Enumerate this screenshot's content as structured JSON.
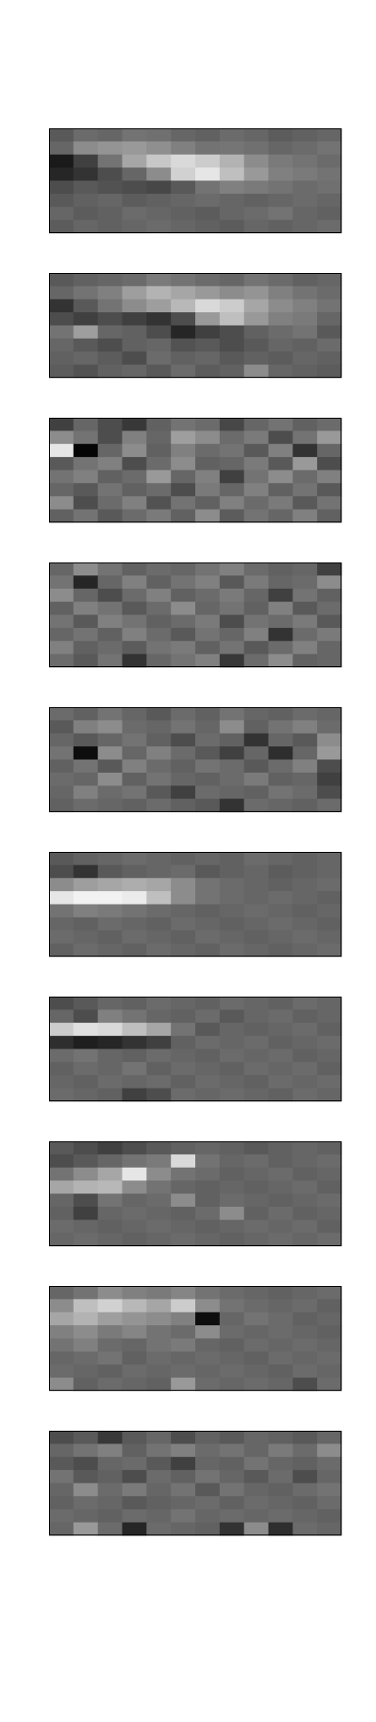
{
  "chart_data": [
    {
      "type": "heatmap",
      "colormap": "gray",
      "rows": 8,
      "cols": 12,
      "values": [
        [
          0.35,
          0.42,
          0.4,
          0.45,
          0.44,
          0.4,
          0.38,
          0.42,
          0.4,
          0.36,
          0.38,
          0.4
        ],
        [
          0.4,
          0.55,
          0.58,
          0.6,
          0.56,
          0.5,
          0.45,
          0.46,
          0.44,
          0.4,
          0.42,
          0.45
        ],
        [
          0.1,
          0.25,
          0.45,
          0.65,
          0.78,
          0.85,
          0.8,
          0.7,
          0.55,
          0.48,
          0.45,
          0.42
        ],
        [
          0.15,
          0.2,
          0.3,
          0.4,
          0.55,
          0.82,
          0.9,
          0.75,
          0.6,
          0.5,
          0.48,
          0.45
        ],
        [
          0.3,
          0.35,
          0.32,
          0.3,
          0.28,
          0.35,
          0.45,
          0.5,
          0.48,
          0.45,
          0.42,
          0.44
        ],
        [
          0.35,
          0.38,
          0.4,
          0.36,
          0.38,
          0.4,
          0.42,
          0.4,
          0.38,
          0.4,
          0.42,
          0.4
        ],
        [
          0.4,
          0.36,
          0.38,
          0.42,
          0.4,
          0.38,
          0.36,
          0.4,
          0.42,
          0.45,
          0.4,
          0.38
        ],
        [
          0.36,
          0.4,
          0.38,
          0.4,
          0.42,
          0.4,
          0.38,
          0.36,
          0.4,
          0.38,
          0.4,
          0.42
        ]
      ]
    },
    {
      "type": "heatmap",
      "colormap": "gray",
      "rows": 8,
      "cols": 12,
      "values": [
        [
          0.35,
          0.38,
          0.4,
          0.42,
          0.48,
          0.45,
          0.42,
          0.4,
          0.45,
          0.42,
          0.38,
          0.4
        ],
        [
          0.4,
          0.45,
          0.5,
          0.62,
          0.7,
          0.65,
          0.6,
          0.55,
          0.58,
          0.5,
          0.45,
          0.42
        ],
        [
          0.2,
          0.35,
          0.45,
          0.55,
          0.62,
          0.72,
          0.85,
          0.8,
          0.65,
          0.55,
          0.5,
          0.45
        ],
        [
          0.3,
          0.25,
          0.3,
          0.25,
          0.2,
          0.3,
          0.6,
          0.75,
          0.6,
          0.5,
          0.48,
          0.4
        ],
        [
          0.45,
          0.62,
          0.4,
          0.38,
          0.3,
          0.15,
          0.25,
          0.3,
          0.38,
          0.42,
          0.45,
          0.35
        ],
        [
          0.4,
          0.35,
          0.3,
          0.38,
          0.4,
          0.32,
          0.35,
          0.3,
          0.35,
          0.4,
          0.38,
          0.42
        ],
        [
          0.38,
          0.4,
          0.36,
          0.3,
          0.42,
          0.38,
          0.4,
          0.35,
          0.38,
          0.36,
          0.4,
          0.38
        ],
        [
          0.36,
          0.32,
          0.38,
          0.4,
          0.35,
          0.42,
          0.36,
          0.38,
          0.55,
          0.4,
          0.38,
          0.36
        ]
      ]
    },
    {
      "type": "heatmap",
      "colormap": "gray",
      "rows": 8,
      "cols": 12,
      "values": [
        [
          0.25,
          0.4,
          0.3,
          0.22,
          0.38,
          0.45,
          0.42,
          0.28,
          0.4,
          0.45,
          0.38,
          0.42
        ],
        [
          0.55,
          0.45,
          0.3,
          0.5,
          0.4,
          0.62,
          0.55,
          0.42,
          0.48,
          0.3,
          0.45,
          0.6
        ],
        [
          0.9,
          0.02,
          0.4,
          0.55,
          0.38,
          0.5,
          0.42,
          0.45,
          0.35,
          0.5,
          0.2,
          0.4
        ],
        [
          0.35,
          0.45,
          0.5,
          0.3,
          0.42,
          0.55,
          0.38,
          0.4,
          0.48,
          0.35,
          0.6,
          0.3
        ],
        [
          0.45,
          0.5,
          0.38,
          0.42,
          0.6,
          0.4,
          0.5,
          0.25,
          0.45,
          0.55,
          0.42,
          0.5
        ],
        [
          0.4,
          0.35,
          0.45,
          0.38,
          0.42,
          0.3,
          0.48,
          0.4,
          0.5,
          0.38,
          0.45,
          0.35
        ],
        [
          0.55,
          0.3,
          0.42,
          0.5,
          0.32,
          0.45,
          0.38,
          0.5,
          0.42,
          0.48,
          0.35,
          0.45
        ],
        [
          0.38,
          0.45,
          0.35,
          0.42,
          0.48,
          0.38,
          0.55,
          0.36,
          0.45,
          0.4,
          0.5,
          0.38
        ]
      ]
    },
    {
      "type": "heatmap",
      "colormap": "gray",
      "rows": 8,
      "cols": 12,
      "values": [
        [
          0.4,
          0.55,
          0.45,
          0.38,
          0.42,
          0.4,
          0.45,
          0.5,
          0.42,
          0.38,
          0.4,
          0.25
        ],
        [
          0.45,
          0.15,
          0.4,
          0.5,
          0.38,
          0.45,
          0.5,
          0.35,
          0.48,
          0.4,
          0.42,
          0.55
        ],
        [
          0.55,
          0.4,
          0.3,
          0.42,
          0.5,
          0.38,
          0.42,
          0.48,
          0.4,
          0.25,
          0.45,
          0.38
        ],
        [
          0.38,
          0.5,
          0.45,
          0.35,
          0.42,
          0.55,
          0.4,
          0.45,
          0.38,
          0.5,
          0.35,
          0.42
        ],
        [
          0.45,
          0.35,
          0.5,
          0.45,
          0.38,
          0.42,
          0.48,
          0.3,
          0.45,
          0.42,
          0.48,
          0.35
        ],
        [
          0.4,
          0.45,
          0.38,
          0.5,
          0.42,
          0.35,
          0.45,
          0.4,
          0.5,
          0.2,
          0.42,
          0.48
        ],
        [
          0.5,
          0.38,
          0.42,
          0.36,
          0.45,
          0.48,
          0.38,
          0.45,
          0.35,
          0.42,
          0.5,
          0.4
        ],
        [
          0.42,
          0.35,
          0.45,
          0.2,
          0.4,
          0.45,
          0.5,
          0.22,
          0.42,
          0.55,
          0.38,
          0.4
        ]
      ]
    },
    {
      "type": "heatmap",
      "colormap": "gray",
      "rows": 8,
      "cols": 12,
      "values": [
        [
          0.42,
          0.38,
          0.45,
          0.4,
          0.35,
          0.42,
          0.38,
          0.45,
          0.4,
          0.38,
          0.42,
          0.4
        ],
        [
          0.35,
          0.5,
          0.55,
          0.42,
          0.4,
          0.45,
          0.4,
          0.55,
          0.38,
          0.45,
          0.5,
          0.42
        ],
        [
          0.4,
          0.35,
          0.4,
          0.45,
          0.38,
          0.3,
          0.42,
          0.38,
          0.2,
          0.4,
          0.35,
          0.55
        ],
        [
          0.45,
          0.05,
          0.55,
          0.4,
          0.5,
          0.42,
          0.35,
          0.25,
          0.4,
          0.18,
          0.4,
          0.6
        ],
        [
          0.38,
          0.45,
          0.35,
          0.5,
          0.42,
          0.38,
          0.45,
          0.42,
          0.35,
          0.42,
          0.5,
          0.3
        ],
        [
          0.42,
          0.4,
          0.55,
          0.38,
          0.45,
          0.4,
          0.38,
          0.42,
          0.48,
          0.38,
          0.4,
          0.25
        ],
        [
          0.4,
          0.5,
          0.42,
          0.45,
          0.35,
          0.25,
          0.42,
          0.4,
          0.38,
          0.45,
          0.42,
          0.3
        ],
        [
          0.38,
          0.42,
          0.4,
          0.38,
          0.42,
          0.38,
          0.35,
          0.2,
          0.42,
          0.4,
          0.38,
          0.42
        ]
      ]
    },
    {
      "type": "heatmap",
      "colormap": "gray",
      "rows": 8,
      "cols": 12,
      "values": [
        [
          0.35,
          0.38,
          0.4,
          0.42,
          0.4,
          0.38,
          0.4,
          0.38,
          0.42,
          0.4,
          0.38,
          0.4
        ],
        [
          0.3,
          0.2,
          0.35,
          0.38,
          0.4,
          0.42,
          0.35,
          0.38,
          0.4,
          0.36,
          0.38,
          0.4
        ],
        [
          0.55,
          0.62,
          0.65,
          0.68,
          0.65,
          0.55,
          0.45,
          0.42,
          0.4,
          0.38,
          0.4,
          0.42
        ],
        [
          0.9,
          0.95,
          0.95,
          0.92,
          0.75,
          0.55,
          0.45,
          0.42,
          0.4,
          0.42,
          0.4,
          0.38
        ],
        [
          0.45,
          0.5,
          0.48,
          0.45,
          0.42,
          0.4,
          0.38,
          0.4,
          0.42,
          0.4,
          0.38,
          0.4
        ],
        [
          0.4,
          0.38,
          0.42,
          0.4,
          0.38,
          0.42,
          0.4,
          0.38,
          0.4,
          0.42,
          0.4,
          0.38
        ],
        [
          0.42,
          0.4,
          0.38,
          0.42,
          0.4,
          0.38,
          0.42,
          0.4,
          0.38,
          0.4,
          0.42,
          0.4
        ],
        [
          0.38,
          0.42,
          0.4,
          0.38,
          0.42,
          0.4,
          0.38,
          0.42,
          0.4,
          0.38,
          0.4,
          0.42
        ]
      ]
    },
    {
      "type": "heatmap",
      "colormap": "gray",
      "rows": 8,
      "cols": 12,
      "values": [
        [
          0.3,
          0.35,
          0.4,
          0.38,
          0.42,
          0.4,
          0.38,
          0.42,
          0.4,
          0.38,
          0.42,
          0.4
        ],
        [
          0.4,
          0.3,
          0.5,
          0.45,
          0.4,
          0.38,
          0.42,
          0.35,
          0.4,
          0.42,
          0.38,
          0.4
        ],
        [
          0.8,
          0.88,
          0.85,
          0.75,
          0.65,
          0.45,
          0.35,
          0.4,
          0.38,
          0.4,
          0.42,
          0.38
        ],
        [
          0.18,
          0.12,
          0.15,
          0.2,
          0.25,
          0.38,
          0.42,
          0.4,
          0.42,
          0.38,
          0.4,
          0.42
        ],
        [
          0.42,
          0.45,
          0.4,
          0.38,
          0.42,
          0.4,
          0.38,
          0.42,
          0.4,
          0.42,
          0.38,
          0.4
        ],
        [
          0.38,
          0.42,
          0.4,
          0.45,
          0.38,
          0.42,
          0.4,
          0.38,
          0.42,
          0.4,
          0.42,
          0.38
        ],
        [
          0.4,
          0.38,
          0.42,
          0.4,
          0.42,
          0.38,
          0.42,
          0.4,
          0.38,
          0.42,
          0.4,
          0.42
        ],
        [
          0.42,
          0.4,
          0.38,
          0.25,
          0.3,
          0.42,
          0.4,
          0.42,
          0.4,
          0.38,
          0.42,
          0.4
        ]
      ]
    },
    {
      "type": "heatmap",
      "colormap": "gray",
      "rows": 8,
      "cols": 12,
      "values": [
        [
          0.35,
          0.3,
          0.25,
          0.3,
          0.35,
          0.38,
          0.4,
          0.38,
          0.35,
          0.38,
          0.4,
          0.38
        ],
        [
          0.3,
          0.35,
          0.4,
          0.45,
          0.48,
          0.85,
          0.45,
          0.4,
          0.42,
          0.38,
          0.4,
          0.42
        ],
        [
          0.45,
          0.55,
          0.65,
          0.9,
          0.55,
          0.45,
          0.42,
          0.38,
          0.4,
          0.42,
          0.38,
          0.4
        ],
        [
          0.65,
          0.7,
          0.72,
          0.55,
          0.45,
          0.4,
          0.38,
          0.4,
          0.38,
          0.4,
          0.42,
          0.38
        ],
        [
          0.4,
          0.3,
          0.45,
          0.4,
          0.42,
          0.55,
          0.38,
          0.42,
          0.4,
          0.38,
          0.4,
          0.42
        ],
        [
          0.38,
          0.25,
          0.4,
          0.42,
          0.4,
          0.38,
          0.42,
          0.55,
          0.38,
          0.42,
          0.38,
          0.4
        ],
        [
          0.42,
          0.4,
          0.38,
          0.4,
          0.42,
          0.4,
          0.38,
          0.4,
          0.42,
          0.4,
          0.42,
          0.38
        ],
        [
          0.4,
          0.42,
          0.4,
          0.38,
          0.4,
          0.42,
          0.4,
          0.38,
          0.4,
          0.42,
          0.4,
          0.42
        ]
      ]
    },
    {
      "type": "heatmap",
      "colormap": "gray",
      "rows": 8,
      "cols": 12,
      "values": [
        [
          0.4,
          0.45,
          0.55,
          0.5,
          0.48,
          0.52,
          0.45,
          0.42,
          0.4,
          0.38,
          0.4,
          0.42
        ],
        [
          0.55,
          0.75,
          0.82,
          0.72,
          0.65,
          0.8,
          0.55,
          0.45,
          0.42,
          0.4,
          0.42,
          0.38
        ],
        [
          0.65,
          0.7,
          0.62,
          0.58,
          0.55,
          0.5,
          0.05,
          0.4,
          0.45,
          0.42,
          0.38,
          0.4
        ],
        [
          0.5,
          0.55,
          0.48,
          0.52,
          0.45,
          0.42,
          0.55,
          0.42,
          0.4,
          0.42,
          0.4,
          0.38
        ],
        [
          0.45,
          0.5,
          0.42,
          0.4,
          0.45,
          0.48,
          0.4,
          0.38,
          0.42,
          0.4,
          0.42,
          0.4
        ],
        [
          0.4,
          0.42,
          0.45,
          0.38,
          0.42,
          0.4,
          0.42,
          0.4,
          0.38,
          0.42,
          0.4,
          0.42
        ],
        [
          0.42,
          0.4,
          0.38,
          0.42,
          0.4,
          0.42,
          0.4,
          0.42,
          0.4,
          0.38,
          0.42,
          0.4
        ],
        [
          0.55,
          0.38,
          0.42,
          0.4,
          0.38,
          0.6,
          0.42,
          0.4,
          0.42,
          0.4,
          0.3,
          0.42
        ]
      ]
    },
    {
      "type": "heatmap",
      "colormap": "gray",
      "rows": 8,
      "cols": 12,
      "values": [
        [
          0.3,
          0.35,
          0.22,
          0.35,
          0.4,
          0.3,
          0.38,
          0.35,
          0.4,
          0.38,
          0.35,
          0.4
        ],
        [
          0.4,
          0.45,
          0.5,
          0.38,
          0.45,
          0.5,
          0.42,
          0.45,
          0.4,
          0.48,
          0.42,
          0.55
        ],
        [
          0.35,
          0.3,
          0.4,
          0.42,
          0.35,
          0.25,
          0.4,
          0.38,
          0.45,
          0.4,
          0.38,
          0.42
        ],
        [
          0.45,
          0.35,
          0.38,
          0.3,
          0.42,
          0.38,
          0.45,
          0.4,
          0.35,
          0.42,
          0.3,
          0.4
        ],
        [
          0.4,
          0.55,
          0.42,
          0.48,
          0.4,
          0.45,
          0.35,
          0.45,
          0.4,
          0.38,
          0.42,
          0.45
        ],
        [
          0.38,
          0.42,
          0.4,
          0.35,
          0.38,
          0.4,
          0.42,
          0.38,
          0.42,
          0.4,
          0.38,
          0.42
        ],
        [
          0.42,
          0.4,
          0.38,
          0.42,
          0.4,
          0.45,
          0.4,
          0.42,
          0.4,
          0.42,
          0.4,
          0.38
        ],
        [
          0.4,
          0.6,
          0.42,
          0.15,
          0.42,
          0.4,
          0.38,
          0.2,
          0.55,
          0.18,
          0.42,
          0.4
        ]
      ]
    }
  ]
}
